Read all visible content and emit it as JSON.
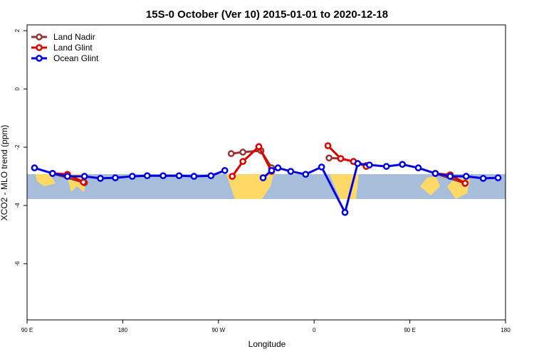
{
  "chart_data": {
    "type": "line",
    "title": "15S-0 October (Ver 10)   2015-01-01 to 2020-12-18",
    "x_label": "Longitude",
    "y_label": "XCO2 - MLO trend (ppm)",
    "xlim": [
      90,
      540
    ],
    "xticks": [
      {
        "value": 90,
        "label": "90 E"
      },
      180,
      {
        "value": 270,
        "label": "90 W"
      },
      {
        "value": 360,
        "label": "0"
      },
      {
        "value": 450,
        "label": "90 E"
      },
      {
        "value": 540,
        "label": "180"
      }
    ],
    "ylim": [
      -7.93,
      2.2
    ],
    "yticks": [
      2,
      0,
      -2,
      -4,
      -6
    ],
    "legend": "top-left",
    "series": [
      {
        "name": "Land Nadir",
        "color": "#993333",
        "x": [
          114,
          144,
          null,
          282,
          293,
          310,
          320,
          null,
          374,
          385,
          397,
          409,
          null,
          474,
          502
        ],
        "values": [
          -2.9,
          -3.22,
          null,
          -2.22,
          -2.17,
          -2.12,
          -2.71,
          null,
          -2.37,
          -2.39,
          -2.49,
          -2.63,
          null,
          -2.9,
          -3.24
        ]
      },
      {
        "name": "Land Glint",
        "color": "#e00000",
        "x": [
          114,
          128,
          143,
          null,
          283,
          293,
          308,
          320,
          null,
          373,
          385,
          397,
          409,
          null,
          474,
          488,
          502
        ],
        "values": [
          -2.9,
          -2.93,
          -3.2,
          null,
          -3.0,
          -2.49,
          -1.98,
          -2.83,
          null,
          -1.95,
          -2.39,
          -2.49,
          -2.66,
          null,
          -2.9,
          -2.95,
          -3.24
        ]
      },
      {
        "name": "Ocean Glint",
        "color": "#0000e0",
        "x": [
          97,
          114,
          128,
          144,
          159,
          173,
          189,
          203,
          218,
          233,
          247,
          263,
          276,
          null,
          312,
          320,
          326,
          338,
          352,
          367,
          389,
          401,
          412,
          428,
          443,
          458,
          474,
          488,
          503,
          519,
          533
        ],
        "values": [
          -2.71,
          -2.9,
          -3.0,
          -3.0,
          -3.07,
          -3.05,
          -3.0,
          -2.98,
          -2.98,
          -2.98,
          -3.0,
          -2.98,
          -2.8,
          null,
          -3.05,
          -2.8,
          -2.71,
          -2.83,
          -2.93,
          -2.68,
          -4.24,
          -2.56,
          -2.61,
          -2.66,
          -2.59,
          -2.71,
          -2.9,
          -3.0,
          -3.0,
          -3.07,
          -3.05
        ]
      }
    ]
  }
}
